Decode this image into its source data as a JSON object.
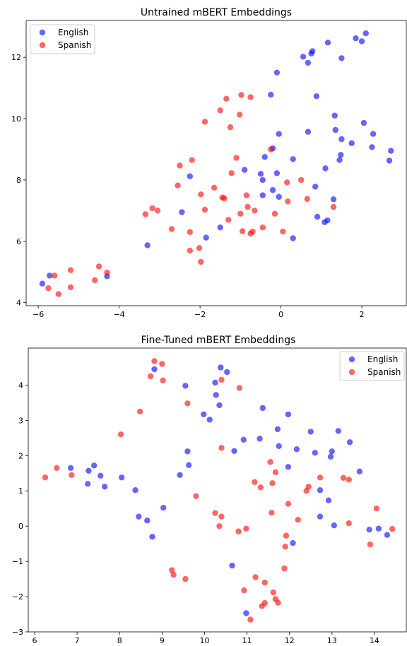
{
  "chart_data": [
    {
      "type": "scatter",
      "title": "Untrained mBERT Embeddings",
      "xlabel": "",
      "ylabel": "",
      "xlim": [
        -6.3,
        3.1
      ],
      "ylim": [
        3.9,
        13.2
      ],
      "xticks": [
        -6,
        -4,
        -2,
        0,
        2
      ],
      "yticks": [
        4,
        6,
        8,
        10,
        12
      ],
      "legend": "top-left",
      "grid": false,
      "series": [
        {
          "name": "English",
          "color": "#0000ff",
          "points": [
            [
              -5.9,
              4.62
            ],
            [
              -5.72,
              4.88
            ],
            [
              -4.3,
              4.86
            ],
            [
              -3.3,
              5.87
            ],
            [
              -2.45,
              6.95
            ],
            [
              -2.25,
              8.12
            ],
            [
              -1.85,
              6.12
            ],
            [
              -1.5,
              6.45
            ],
            [
              -0.9,
              8.33
            ],
            [
              -0.5,
              8.2
            ],
            [
              -0.45,
              7.5
            ],
            [
              -0.45,
              8.0
            ],
            [
              -0.4,
              8.75
            ],
            [
              -0.25,
              10.78
            ],
            [
              -0.2,
              9.03
            ],
            [
              -0.2,
              7.67
            ],
            [
              -0.1,
              8.22
            ],
            [
              -0.1,
              11.5
            ],
            [
              -0.05,
              9.5
            ],
            [
              -0.05,
              7.45
            ],
            [
              0.3,
              8.68
            ],
            [
              0.3,
              6.1
            ],
            [
              0.55,
              12.02
            ],
            [
              0.67,
              9.57
            ],
            [
              0.67,
              11.82
            ],
            [
              0.75,
              12.12
            ],
            [
              0.78,
              12.2
            ],
            [
              0.85,
              7.78
            ],
            [
              0.88,
              10.73
            ],
            [
              0.9,
              6.8
            ],
            [
              1.08,
              6.62
            ],
            [
              1.1,
              8.38
            ],
            [
              1.15,
              6.68
            ],
            [
              1.16,
              12.48
            ],
            [
              1.3,
              7.37
            ],
            [
              1.33,
              10.1
            ],
            [
              1.35,
              9.63
            ],
            [
              1.45,
              8.65
            ],
            [
              1.48,
              8.82
            ],
            [
              1.5,
              11.97
            ],
            [
              1.5,
              9.33
            ],
            [
              1.75,
              9.2
            ],
            [
              1.85,
              12.62
            ],
            [
              2.0,
              12.52
            ],
            [
              2.05,
              9.86
            ],
            [
              2.1,
              12.78
            ],
            [
              2.25,
              9.07
            ],
            [
              2.28,
              9.5
            ],
            [
              2.68,
              8.63
            ],
            [
              2.72,
              8.95
            ]
          ]
        },
        {
          "name": "Spanish",
          "color": "#ff0000",
          "points": [
            [
              -5.75,
              4.47
            ],
            [
              -5.6,
              4.88
            ],
            [
              -5.5,
              4.28
            ],
            [
              -5.2,
              5.06
            ],
            [
              -5.2,
              4.5
            ],
            [
              -4.6,
              4.73
            ],
            [
              -4.5,
              5.18
            ],
            [
              -4.3,
              4.98
            ],
            [
              -3.35,
              6.88
            ],
            [
              -3.18,
              7.08
            ],
            [
              -3.05,
              7.0
            ],
            [
              -2.7,
              6.4
            ],
            [
              -2.55,
              7.82
            ],
            [
              -2.5,
              8.47
            ],
            [
              -2.25,
              5.7
            ],
            [
              -2.25,
              6.3
            ],
            [
              -2.2,
              8.65
            ],
            [
              -2.02,
              5.78
            ],
            [
              -1.98,
              5.33
            ],
            [
              -1.98,
              7.53
            ],
            [
              -1.88,
              7.03
            ],
            [
              -1.88,
              9.9
            ],
            [
              -1.65,
              7.75
            ],
            [
              -1.5,
              10.27
            ],
            [
              -1.45,
              7.43
            ],
            [
              -1.4,
              7.4
            ],
            [
              -1.35,
              10.65
            ],
            [
              -1.3,
              6.7
            ],
            [
              -1.25,
              9.72
            ],
            [
              -1.22,
              8.22
            ],
            [
              -1.1,
              8.72
            ],
            [
              -1.02,
              10.13
            ],
            [
              -1.0,
              6.9
            ],
            [
              -0.98,
              10.77
            ],
            [
              -0.95,
              6.33
            ],
            [
              -0.85,
              7.5
            ],
            [
              -0.82,
              7.12
            ],
            [
              -0.75,
              6.25
            ],
            [
              -0.75,
              10.7
            ],
            [
              -0.7,
              6.32
            ],
            [
              -0.65,
              7.0
            ],
            [
              -0.45,
              6.45
            ],
            [
              -0.25,
              9.0
            ],
            [
              -0.15,
              6.9
            ],
            [
              0.05,
              6.32
            ],
            [
              0.15,
              7.92
            ],
            [
              0.17,
              7.3
            ],
            [
              0.5,
              8.0
            ],
            [
              0.65,
              7.38
            ],
            [
              1.3,
              7.12
            ]
          ]
        }
      ]
    },
    {
      "type": "scatter",
      "title": "Fine-Tuned mBERT Embeddings",
      "xlabel": "",
      "ylabel": "",
      "xlim": [
        5.85,
        14.75
      ],
      "ylim": [
        -3.0,
        5.05
      ],
      "xticks": [
        6,
        7,
        8,
        9,
        10,
        11,
        12,
        13,
        14
      ],
      "yticks": [
        -3,
        -2,
        -1,
        0,
        1,
        2,
        3,
        4
      ],
      "legend": "top-right",
      "grid": false,
      "series": [
        {
          "name": "English",
          "color": "#0000ff",
          "points": [
            [
              6.85,
              1.65
            ],
            [
              7.25,
              1.2
            ],
            [
              7.27,
              1.57
            ],
            [
              7.4,
              1.72
            ],
            [
              7.55,
              1.43
            ],
            [
              7.65,
              1.12
            ],
            [
              8.05,
              1.38
            ],
            [
              8.37,
              1.02
            ],
            [
              8.45,
              0.27
            ],
            [
              8.65,
              0.16
            ],
            [
              8.77,
              -0.3
            ],
            [
              8.82,
              4.45
            ],
            [
              9.03,
              0.52
            ],
            [
              9.42,
              1.45
            ],
            [
              9.55,
              3.98
            ],
            [
              9.6,
              2.12
            ],
            [
              9.63,
              1.73
            ],
            [
              9.98,
              3.17
            ],
            [
              10.12,
              3.02
            ],
            [
              10.25,
              4.07
            ],
            [
              10.27,
              3.72
            ],
            [
              10.35,
              3.43
            ],
            [
              10.38,
              4.5
            ],
            [
              10.53,
              4.37
            ],
            [
              10.65,
              -1.12
            ],
            [
              10.7,
              2.13
            ],
            [
              10.92,
              2.45
            ],
            [
              10.98,
              -2.47
            ],
            [
              11.3,
              2.48
            ],
            [
              11.37,
              3.35
            ],
            [
              11.72,
              2.75
            ],
            [
              11.75,
              2.27
            ],
            [
              11.97,
              3.17
            ],
            [
              11.97,
              1.68
            ],
            [
              12.08,
              -0.48
            ],
            [
              12.17,
              2.18
            ],
            [
              12.5,
              2.68
            ],
            [
              12.6,
              2.08
            ],
            [
              12.72,
              1.02
            ],
            [
              12.72,
              0.27
            ],
            [
              12.92,
              0.73
            ],
            [
              12.97,
              1.97
            ],
            [
              13.0,
              2.12
            ],
            [
              13.05,
              0.02
            ],
            [
              13.15,
              2.7
            ],
            [
              13.42,
              2.38
            ],
            [
              13.65,
              1.55
            ],
            [
              13.88,
              -0.1
            ],
            [
              14.1,
              -0.07
            ],
            [
              14.3,
              -0.25
            ]
          ]
        },
        {
          "name": "Spanish",
          "color": "#ff0000",
          "points": [
            [
              6.25,
              1.38
            ],
            [
              6.52,
              1.65
            ],
            [
              6.87,
              1.45
            ],
            [
              8.03,
              2.6
            ],
            [
              8.48,
              3.25
            ],
            [
              8.73,
              4.25
            ],
            [
              8.82,
              4.68
            ],
            [
              9.0,
              4.6
            ],
            [
              9.02,
              4.13
            ],
            [
              9.23,
              -1.25
            ],
            [
              9.27,
              -1.38
            ],
            [
              9.55,
              -1.5
            ],
            [
              9.6,
              3.48
            ],
            [
              9.8,
              0.85
            ],
            [
              10.25,
              0.37
            ],
            [
              10.35,
              0.0
            ],
            [
              10.4,
              4.15
            ],
            [
              10.4,
              2.22
            ],
            [
              10.4,
              0.27
            ],
            [
              10.8,
              -0.15
            ],
            [
              10.82,
              3.92
            ],
            [
              10.93,
              -1.82
            ],
            [
              10.98,
              -0.07
            ],
            [
              11.08,
              -2.65
            ],
            [
              11.18,
              1.25
            ],
            [
              11.2,
              -1.45
            ],
            [
              11.32,
              1.1
            ],
            [
              11.35,
              -2.27
            ],
            [
              11.42,
              -2.18
            ],
            [
              11.42,
              -1.6
            ],
            [
              11.55,
              1.82
            ],
            [
              11.58,
              0.38
            ],
            [
              11.6,
              1.22
            ],
            [
              11.62,
              -1.88
            ],
            [
              11.67,
              1.53
            ],
            [
              11.67,
              -2.07
            ],
            [
              11.73,
              -2.17
            ],
            [
              11.88,
              -1.2
            ],
            [
              11.9,
              -0.58
            ],
            [
              11.92,
              -0.27
            ],
            [
              11.97,
              0.63
            ],
            [
              12.2,
              0.18
            ],
            [
              12.4,
              1.0
            ],
            [
              12.45,
              1.12
            ],
            [
              12.72,
              1.38
            ],
            [
              13.27,
              1.37
            ],
            [
              13.4,
              1.32
            ],
            [
              13.4,
              0.08
            ],
            [
              13.9,
              -0.52
            ],
            [
              14.05,
              0.5
            ],
            [
              14.42,
              -0.08
            ]
          ]
        }
      ]
    }
  ]
}
